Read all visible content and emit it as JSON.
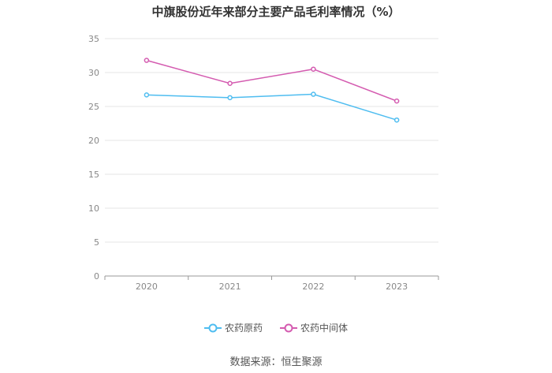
{
  "chart_data": {
    "type": "line",
    "title": "中旗股份近年来部分主要产品毛利率情况（%）",
    "categories": [
      "2020",
      "2021",
      "2022",
      "2023"
    ],
    "series": [
      {
        "name": "农药原药",
        "values": [
          26.7,
          26.3,
          26.8,
          23.0
        ],
        "color": "#4fbdf0"
      },
      {
        "name": "农药中间体",
        "values": [
          31.8,
          28.4,
          30.5,
          25.8
        ],
        "color": "#d45bb0"
      }
    ],
    "y_ticks": [
      "0",
      "5",
      "10",
      "15",
      "20",
      "25",
      "30",
      "35"
    ],
    "ylim": [
      0,
      35
    ],
    "grid": true,
    "legend_position": "bottom"
  },
  "footer": {
    "source": "数据来源：恒生聚源"
  }
}
